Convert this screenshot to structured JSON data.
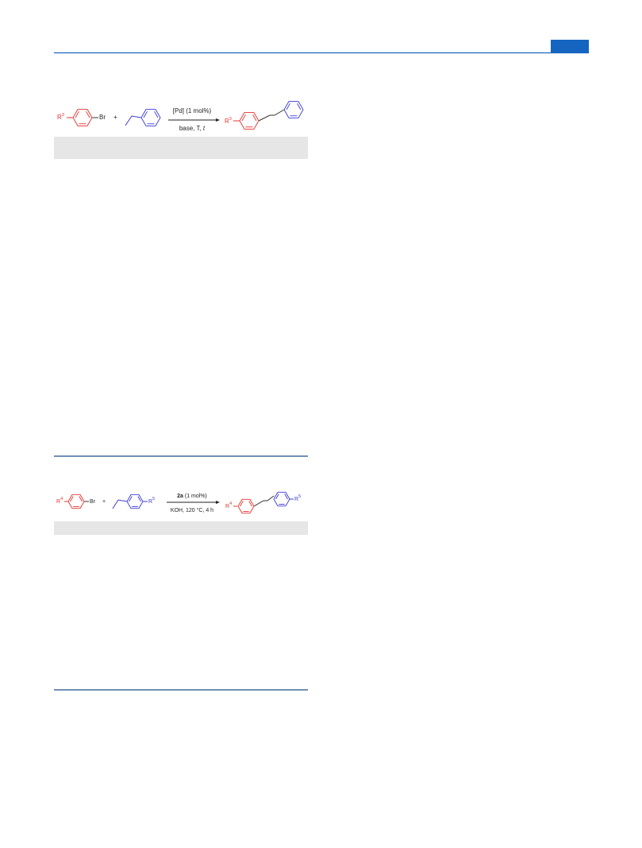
{
  "scheme1": {
    "reactant_r": "R",
    "reactant_sup": "3",
    "leaving_group": "Br",
    "plus": "+",
    "conditions_above": "[Pd] (1 mol%)",
    "conditions_below": "base, T, ",
    "conditions_time": "t",
    "product_r": "R",
    "product_sup": "3"
  },
  "scheme2": {
    "reactant_r": "R",
    "reactant_sup": "4",
    "leaving_group": "Br",
    "plus": "+",
    "styrene_r": "R",
    "styrene_sup": "5",
    "catalyst": "2a",
    "catalyst_loading": " (1 mol%)",
    "conditions_below": "KOH, 120 °C, 4 h",
    "product_r1": "R",
    "product_sup1": "4",
    "product_r2": "R",
    "product_sup2": "5"
  }
}
